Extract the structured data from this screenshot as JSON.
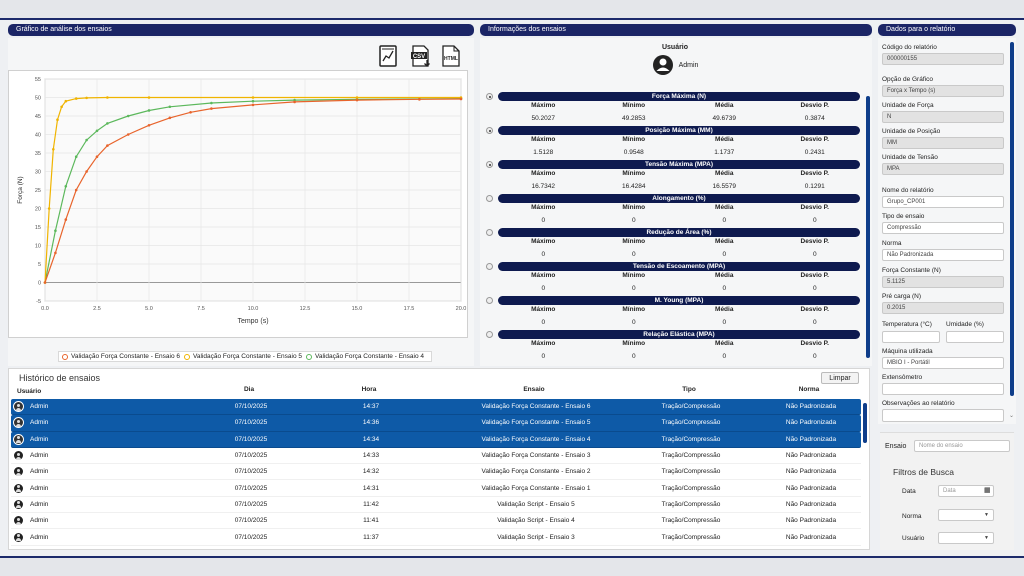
{
  "chart_panel": {
    "header": "Gráfico de análise dos ensaios",
    "icons": [
      "chart-file-icon",
      "csv-download-icon",
      "html-file-icon"
    ],
    "csv_label": "CSV",
    "html_label": "HTML"
  },
  "chart_data": {
    "type": "line",
    "xlabel": "Tempo (s)",
    "ylabel": "Força (N)",
    "xlim": [
      0,
      20
    ],
    "ylim": [
      -5,
      55
    ],
    "xticks": [
      "0.0",
      "2.5",
      "5.0",
      "7.5",
      "10.0",
      "12.5",
      "15.0",
      "17.5",
      "20.0"
    ],
    "yticks": [
      "-5",
      "0",
      "5",
      "10",
      "15",
      "20",
      "25",
      "30",
      "35",
      "40",
      "45",
      "50",
      "55"
    ],
    "grid": true,
    "legend_position": "bottom",
    "series": [
      {
        "name": "Validação Força Constante - Ensaio 6",
        "color": "#e8642c",
        "x": [
          0,
          0.5,
          1,
          1.5,
          2,
          2.5,
          3,
          4,
          5,
          6,
          7,
          8,
          10,
          12,
          15,
          18,
          20
        ],
        "y": [
          0,
          8,
          17,
          25,
          30,
          34,
          37,
          40,
          42.5,
          44.5,
          46,
          47,
          48,
          48.8,
          49.3,
          49.5,
          49.6
        ]
      },
      {
        "name": "Validação Força Constante - Ensaio 5",
        "color": "#f0b400",
        "x": [
          0,
          0.2,
          0.4,
          0.6,
          0.8,
          1,
          1.5,
          2,
          3,
          5,
          10,
          15,
          20
        ],
        "y": [
          0,
          20,
          36,
          44,
          47.5,
          49,
          49.7,
          49.9,
          50,
          50,
          50,
          50,
          50
        ]
      },
      {
        "name": "Validação Força Constante - Ensaio 4",
        "color": "#5cb85c",
        "x": [
          0,
          0.5,
          1,
          1.5,
          2,
          2.5,
          3,
          4,
          5,
          6,
          8,
          10,
          12,
          15,
          18,
          20
        ],
        "y": [
          0,
          14,
          26,
          34,
          38.5,
          41,
          43,
          45,
          46.5,
          47.5,
          48.5,
          49,
          49.3,
          49.5,
          49.6,
          49.7
        ]
      }
    ]
  },
  "info_panel": {
    "header": "Informações dos ensaios",
    "user_label": "Usuário",
    "user_name": "Admin",
    "columns": [
      "Máximo",
      "Mínimo",
      "Média",
      "Desvio P."
    ],
    "groups": [
      {
        "title": "Força Máxima (N)",
        "selected": true,
        "values": [
          "50.2027",
          "49.2853",
          "49.6739",
          "0.3874"
        ]
      },
      {
        "title": "Posição Máxima (MM)",
        "selected": true,
        "values": [
          "1.5128",
          "0.9548",
          "1.1737",
          "0.2431"
        ]
      },
      {
        "title": "Tensão Máxima (MPA)",
        "selected": true,
        "values": [
          "16.7342",
          "16.4284",
          "16.5579",
          "0.1291"
        ]
      },
      {
        "title": "Alongamento (%)",
        "selected": false,
        "values": [
          "0",
          "0",
          "0",
          "0"
        ]
      },
      {
        "title": "Redução de Área (%)",
        "selected": false,
        "values": [
          "0",
          "0",
          "0",
          "0"
        ]
      },
      {
        "title": "Tensão de Escoamento (MPA)",
        "selected": false,
        "values": [
          "0",
          "0",
          "0",
          "0"
        ]
      },
      {
        "title": "M. Young (MPA)",
        "selected": false,
        "values": [
          "0",
          "0",
          "0",
          "0"
        ]
      },
      {
        "title": "Relação Elástica (MPA)",
        "selected": false,
        "values": [
          "0",
          "0",
          "0",
          "0"
        ]
      }
    ]
  },
  "report_panel": {
    "header": "Dados para o relatório",
    "fields": [
      {
        "label": "Código do relatório",
        "value": "000000155",
        "readonly": true
      },
      {
        "label": "Opção de Gráfico",
        "value": "Força x Tempo (s)",
        "readonly": true
      },
      {
        "label": "Unidade de Força",
        "value": "N",
        "readonly": true
      },
      {
        "label": "Unidade de Posição",
        "value": "MM",
        "readonly": true
      },
      {
        "label": "Unidade de Tensão",
        "value": "MPA",
        "readonly": true
      },
      {
        "label": "Nome do relatório",
        "value": "Grupo_CP001",
        "readonly": false
      },
      {
        "label": "Tipo de ensaio",
        "value": "Compressão",
        "readonly": false
      },
      {
        "label": "Norma",
        "value": "Não Padronizada",
        "readonly": false
      },
      {
        "label": "Força Constante (N)",
        "value": "5.1125",
        "readonly": true
      },
      {
        "label": "Pré carga (N)",
        "value": "0.2015",
        "readonly": true
      }
    ],
    "temperature_label": "Temperatura (°C)",
    "humidity_label": "Umidade (%)",
    "machine_label": "Máquina utilizada",
    "machine_value": "MBIO I - Portátil",
    "extensometer_label": "Extensômetro",
    "observations_label": "Observações ao relatório"
  },
  "history": {
    "title": "Histórico de ensaios",
    "clear_button": "Limpar",
    "columns": [
      "Usuário",
      "Dia",
      "Hora",
      "Ensaio",
      "Tipo",
      "Norma"
    ],
    "rows": [
      {
        "user": "Admin",
        "day": "07/10/2025",
        "hour": "14:37",
        "test": "Validação Força Constante - Ensaio 6",
        "type": "Tração/Compressão",
        "norm": "Não Padronizada",
        "selected": true
      },
      {
        "user": "Admin",
        "day": "07/10/2025",
        "hour": "14:36",
        "test": "Validação Força Constante - Ensaio 5",
        "type": "Tração/Compressão",
        "norm": "Não Padronizada",
        "selected": true
      },
      {
        "user": "Admin",
        "day": "07/10/2025",
        "hour": "14:34",
        "test": "Validação Força Constante - Ensaio 4",
        "type": "Tração/Compressão",
        "norm": "Não Padronizada",
        "selected": true
      },
      {
        "user": "Admin",
        "day": "07/10/2025",
        "hour": "14:33",
        "test": "Validação Força Constante - Ensaio 3",
        "type": "Tração/Compressão",
        "norm": "Não Padronizada",
        "selected": false
      },
      {
        "user": "Admin",
        "day": "07/10/2025",
        "hour": "14:32",
        "test": "Validação Força Constante - Ensaio 2",
        "type": "Tração/Compressão",
        "norm": "Não Padronizada",
        "selected": false
      },
      {
        "user": "Admin",
        "day": "07/10/2025",
        "hour": "14:31",
        "test": "Validação Força Constante - Ensaio 1",
        "type": "Tração/Compressão",
        "norm": "Não Padronizada",
        "selected": false
      },
      {
        "user": "Admin",
        "day": "07/10/2025",
        "hour": "11:42",
        "test": "Validação Script - Ensaio 5",
        "type": "Tração/Compressão",
        "norm": "Não Padronizada",
        "selected": false
      },
      {
        "user": "Admin",
        "day": "07/10/2025",
        "hour": "11:41",
        "test": "Validação Script - Ensaio 4",
        "type": "Tração/Compressão",
        "norm": "Não Padronizada",
        "selected": false
      },
      {
        "user": "Admin",
        "day": "07/10/2025",
        "hour": "11:37",
        "test": "Validação Script - Ensaio 3",
        "type": "Tração/Compressão",
        "norm": "Não Padronizada",
        "selected": false
      }
    ]
  },
  "filters": {
    "test_label": "Ensaio",
    "test_placeholder": "Nome do ensaio",
    "title": "Filtros de Busca",
    "date_label": "Data",
    "date_placeholder": "Data",
    "norm_label": "Norma",
    "user_label": "Usuário"
  },
  "colors": {
    "header_bg": "#1b2566",
    "selection": "#0e5aa7",
    "series6": "#e8642c",
    "series5": "#f0b400",
    "series4": "#5cb85c"
  }
}
